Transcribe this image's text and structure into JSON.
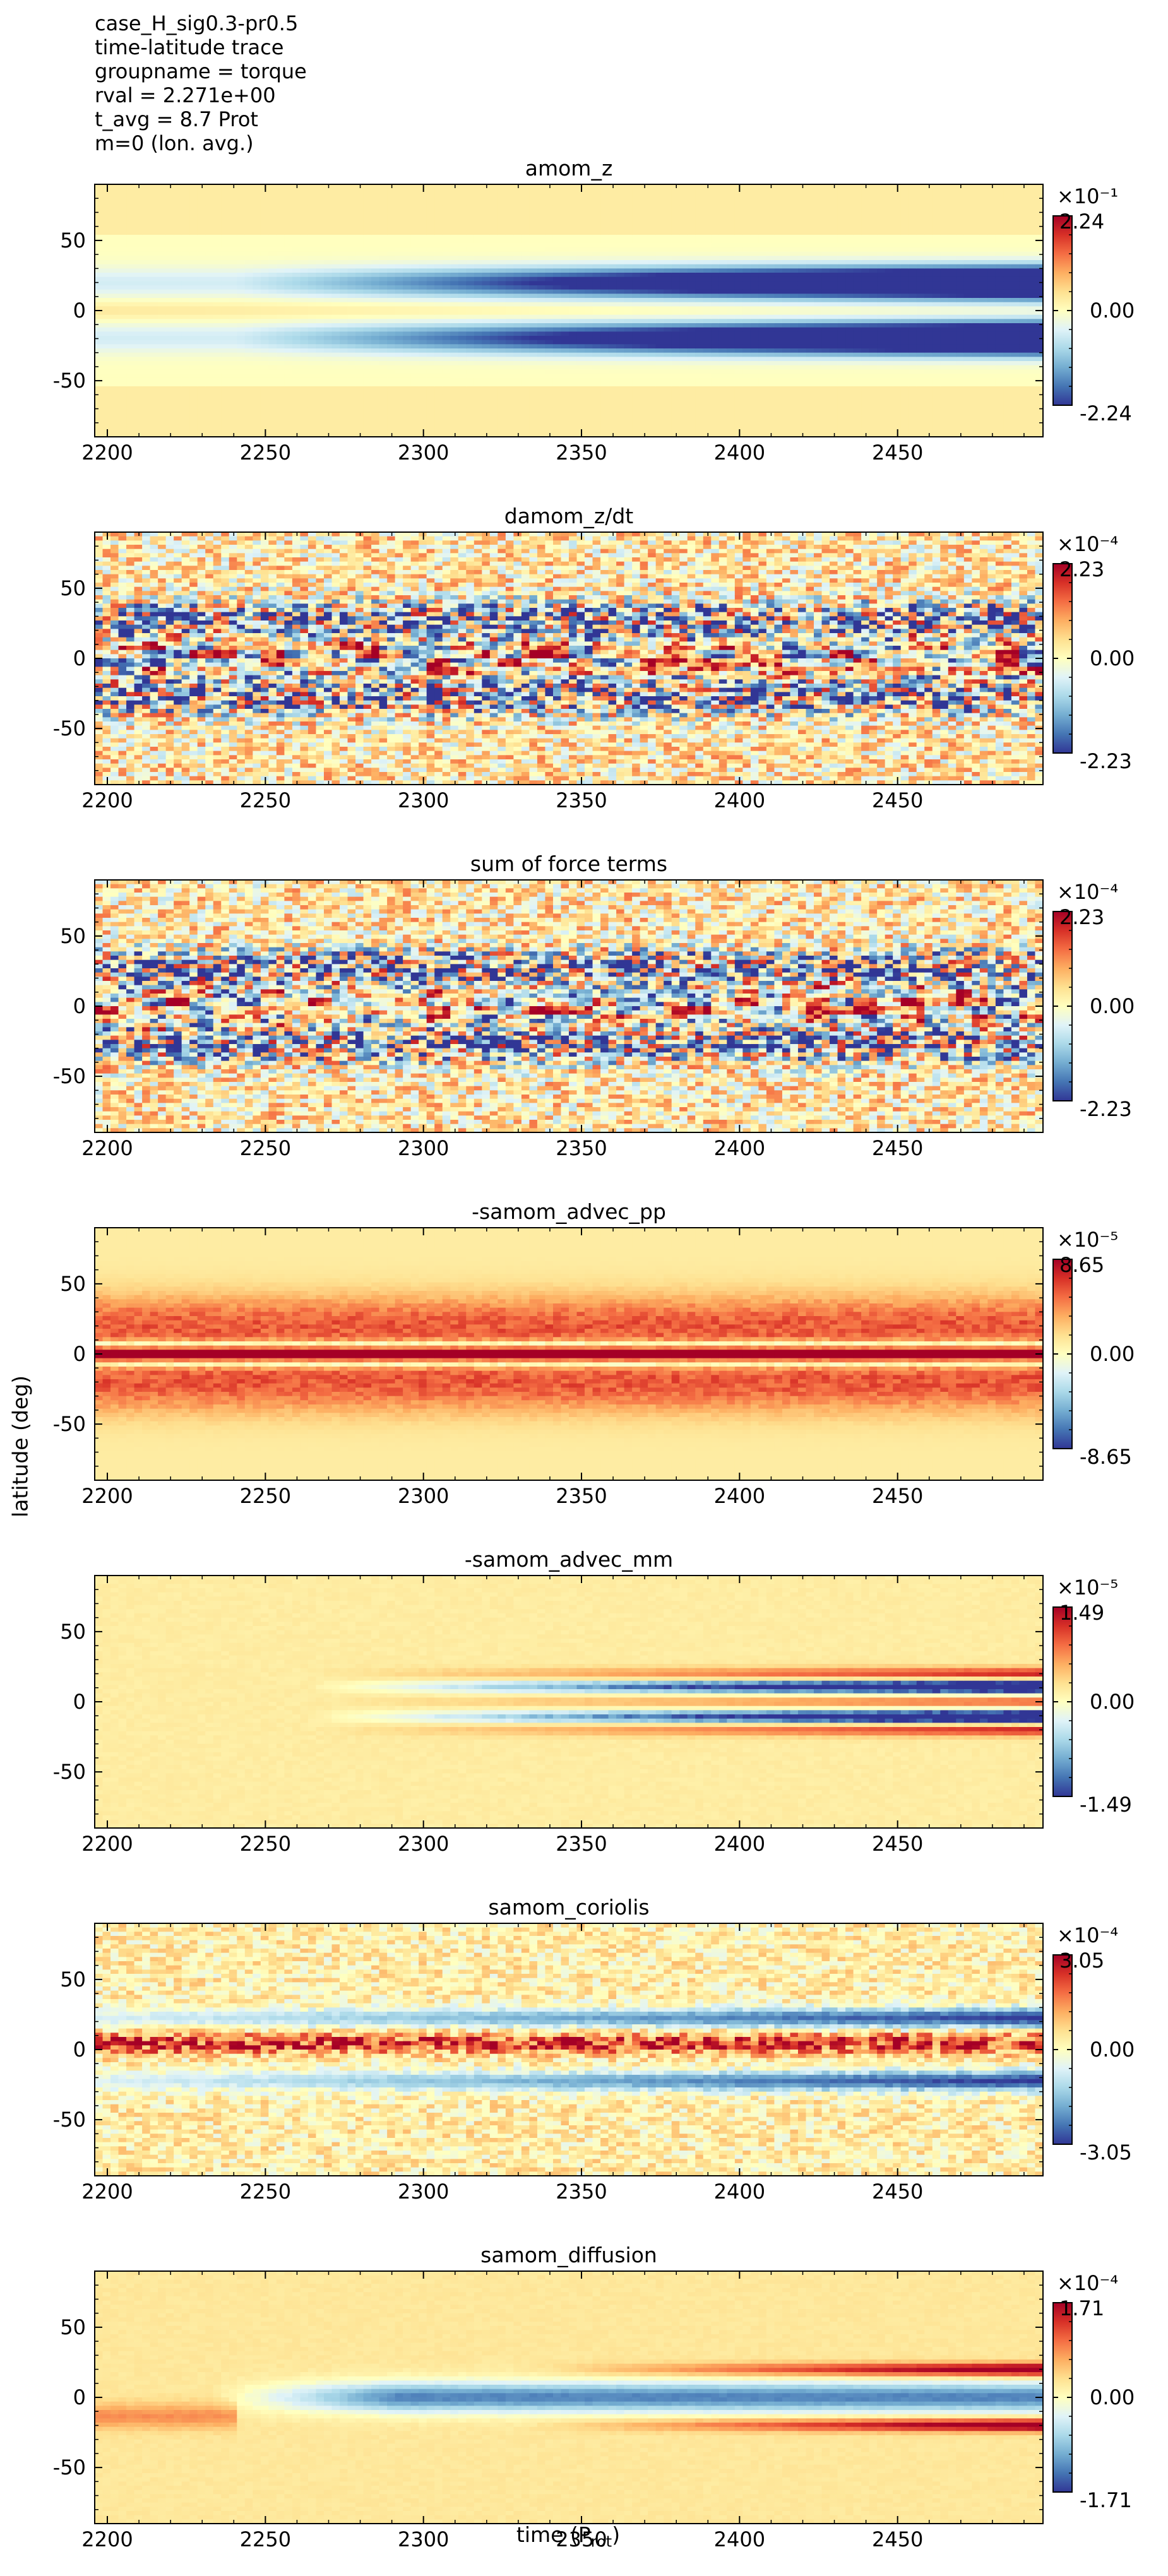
{
  "header": {
    "lines": [
      "case_H_sig0.3-pr0.5",
      "time-latitude trace",
      "groupname = torque",
      "rval = 2.271e+00",
      "t_avg = 8.7 Prot",
      "m=0 (lon. avg.)"
    ]
  },
  "axes_labels": {
    "xlabel_main": "time (P",
    "xlabel_sub": "rot",
    "xlabel_end": ")",
    "ylabel": "latitude (deg)"
  },
  "colormap": [
    "#313695",
    "#4575b4",
    "#74add1",
    "#abd9e9",
    "#e0f3f8",
    "#ffffbf",
    "#fee090",
    "#fdae61",
    "#f46d43",
    "#d73027",
    "#a50026"
  ],
  "chart_data": [
    {
      "type": "heatmap",
      "title": "amom_z",
      "x_ticks": [
        "2200",
        "2250",
        "2300",
        "2350",
        "2400",
        "2450"
      ],
      "y_ticks": [
        "50",
        "0",
        "-50"
      ],
      "xlim": [
        2196,
        2496
      ],
      "ylim": [
        -90,
        90
      ],
      "colorbar": {
        "exponent": "×10⁻¹",
        "max": "2.24",
        "mid": "0.00",
        "min": "-2.24"
      },
      "pattern": "smooth"
    },
    {
      "type": "heatmap",
      "title": "damom_z/dt",
      "x_ticks": [
        "2200",
        "2250",
        "2300",
        "2350",
        "2400",
        "2450"
      ],
      "y_ticks": [
        "50",
        "0",
        "-50"
      ],
      "xlim": [
        2196,
        2496
      ],
      "ylim": [
        -90,
        90
      ],
      "colorbar": {
        "exponent": "×10⁻⁴",
        "max": "2.23",
        "mid": "0.00",
        "min": "-2.23"
      },
      "pattern": "noisy"
    },
    {
      "type": "heatmap",
      "title": "sum of force terms",
      "x_ticks": [
        "2200",
        "2250",
        "2300",
        "2350",
        "2400",
        "2450"
      ],
      "y_ticks": [
        "50",
        "0",
        "-50"
      ],
      "xlim": [
        2196,
        2496
      ],
      "ylim": [
        -90,
        90
      ],
      "colorbar": {
        "exponent": "×10⁻⁴",
        "max": "2.23",
        "mid": "0.00",
        "min": "-2.23"
      },
      "pattern": "noisy"
    },
    {
      "type": "heatmap",
      "title": "-samom_advec_pp",
      "x_ticks": [
        "2200",
        "2250",
        "2300",
        "2350",
        "2400",
        "2450"
      ],
      "y_ticks": [
        "50",
        "0",
        "-50"
      ],
      "xlim": [
        2196,
        2496
      ],
      "ylim": [
        -90,
        90
      ],
      "colorbar": {
        "exponent": "×10⁻⁵",
        "max": "8.65",
        "mid": "0.00",
        "min": "-8.65"
      },
      "pattern": "positive"
    },
    {
      "type": "heatmap",
      "title": "-samom_advec_mm",
      "x_ticks": [
        "2200",
        "2250",
        "2300",
        "2350",
        "2400",
        "2450"
      ],
      "y_ticks": [
        "50",
        "0",
        "-50"
      ],
      "xlim": [
        2196,
        2496
      ],
      "ylim": [
        -90,
        90
      ],
      "colorbar": {
        "exponent": "×10⁻⁵",
        "max": "1.49",
        "mid": "0.00",
        "min": "-1.49"
      },
      "pattern": "bands"
    },
    {
      "type": "heatmap",
      "title": "samom_coriolis",
      "x_ticks": [
        "2200",
        "2250",
        "2300",
        "2350",
        "2400",
        "2450"
      ],
      "y_ticks": [
        "50",
        "0",
        "-50"
      ],
      "xlim": [
        2196,
        2496
      ],
      "ylim": [
        -90,
        90
      ],
      "colorbar": {
        "exponent": "×10⁻⁴",
        "max": "3.05",
        "mid": "0.00",
        "min": "-3.05"
      },
      "pattern": "coriolis"
    },
    {
      "type": "heatmap",
      "title": "samom_diffusion",
      "x_ticks": [
        "2200",
        "2250",
        "2300",
        "2350",
        "2400",
        "2450"
      ],
      "y_ticks": [
        "50",
        "0",
        "-50"
      ],
      "xlim": [
        2196,
        2496
      ],
      "ylim": [
        -90,
        90
      ],
      "colorbar": {
        "exponent": "×10⁻⁴",
        "max": "1.71",
        "mid": "0.00",
        "min": "-1.71"
      },
      "pattern": "diffusion"
    }
  ]
}
